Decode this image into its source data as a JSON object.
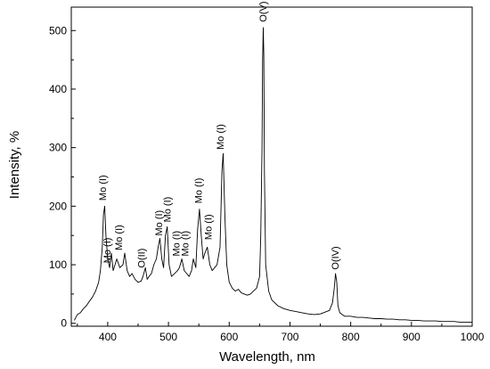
{
  "chart_data": {
    "type": "line",
    "title": "",
    "xlabel": "Wavelength, nm",
    "ylabel": "Intensity, %",
    "xlim": [
      340,
      1000
    ],
    "ylim": [
      -5,
      540
    ],
    "xticks": [
      400,
      500,
      600,
      700,
      800,
      900,
      1000
    ],
    "yticks": [
      0,
      100,
      200,
      300,
      400,
      500
    ],
    "grid": false,
    "legend": "none",
    "line_color": "#000000",
    "series": [
      {
        "x": [
          345,
          350,
          355,
          360,
          365,
          370,
          375,
          380,
          385,
          388,
          391,
          393,
          395,
          397,
          400,
          403,
          406,
          409,
          412,
          415,
          420,
          425,
          428,
          432,
          436,
          440,
          445,
          450,
          455,
          458,
          462,
          465,
          468,
          472,
          476,
          480,
          483,
          486,
          489,
          492,
          495,
          498,
          501,
          505,
          510,
          515,
          518,
          522,
          526,
          530,
          534,
          538,
          541,
          545,
          548,
          551,
          554,
          557,
          560,
          564,
          568,
          572,
          576,
          580,
          585,
          588,
          590,
          593,
          596,
          600,
          605,
          610,
          615,
          620,
          625,
          630,
          635,
          640,
          645,
          650,
          652,
          654,
          655,
          656,
          657,
          658,
          660,
          665,
          670,
          680,
          690,
          700,
          710,
          720,
          730,
          740,
          750,
          755,
          760,
          765,
          770,
          773,
          775,
          777,
          779,
          782,
          786,
          790,
          800,
          810,
          820,
          830,
          840,
          850,
          860,
          870,
          880,
          890,
          900,
          910,
          920,
          930,
          940,
          950,
          960,
          970,
          980,
          990,
          1000
        ],
        "y": [
          5,
          15,
          18,
          25,
          30,
          38,
          45,
          55,
          70,
          90,
          130,
          185,
          200,
          150,
          110,
          95,
          120,
          90,
          100,
          110,
          95,
          100,
          120,
          90,
          80,
          85,
          75,
          70,
          72,
          80,
          95,
          75,
          80,
          85,
          100,
          110,
          130,
          145,
          110,
          95,
          150,
          165,
          100,
          80,
          85,
          90,
          95,
          110,
          90,
          85,
          80,
          90,
          110,
          95,
          160,
          195,
          150,
          110,
          120,
          130,
          100,
          90,
          95,
          100,
          130,
          260,
          290,
          180,
          100,
          70,
          60,
          55,
          58,
          52,
          50,
          48,
          50,
          55,
          60,
          80,
          150,
          300,
          450,
          505,
          460,
          260,
          100,
          55,
          40,
          30,
          25,
          22,
          20,
          18,
          16,
          15,
          16,
          18,
          20,
          22,
          35,
          60,
          85,
          70,
          30,
          18,
          15,
          12,
          12,
          10,
          10,
          9,
          8,
          8,
          7,
          7,
          6,
          6,
          5,
          5,
          4,
          4,
          4,
          3,
          3,
          3,
          2,
          2,
          2
        ]
      }
    ],
    "annotations": [
      {
        "text": "Mo (I)",
        "x": 391,
        "y": 205
      },
      {
        "text": "Mo (I)",
        "x": 399,
        "y": 98
      },
      {
        "text": "Mo (I)",
        "x": 418,
        "y": 120
      },
      {
        "text": "O(II)",
        "x": 455,
        "y": 90
      },
      {
        "text": "Mo (I)",
        "x": 484,
        "y": 145
      },
      {
        "text": "Mo (I)",
        "x": 498,
        "y": 168
      },
      {
        "text": "Mo (I)",
        "x": 512,
        "y": 110
      },
      {
        "text": "Mo (I)",
        "x": 527,
        "y": 110
      },
      {
        "text": "Mo (I)",
        "x": 549,
        "y": 200
      },
      {
        "text": "Mo (I)",
        "x": 565,
        "y": 138
      },
      {
        "text": "Mo (I)",
        "x": 585,
        "y": 292
      },
      {
        "text": "O(V)",
        "x": 655,
        "y": 510
      },
      {
        "text": "O(IV)",
        "x": 774,
        "y": 87
      }
    ]
  }
}
